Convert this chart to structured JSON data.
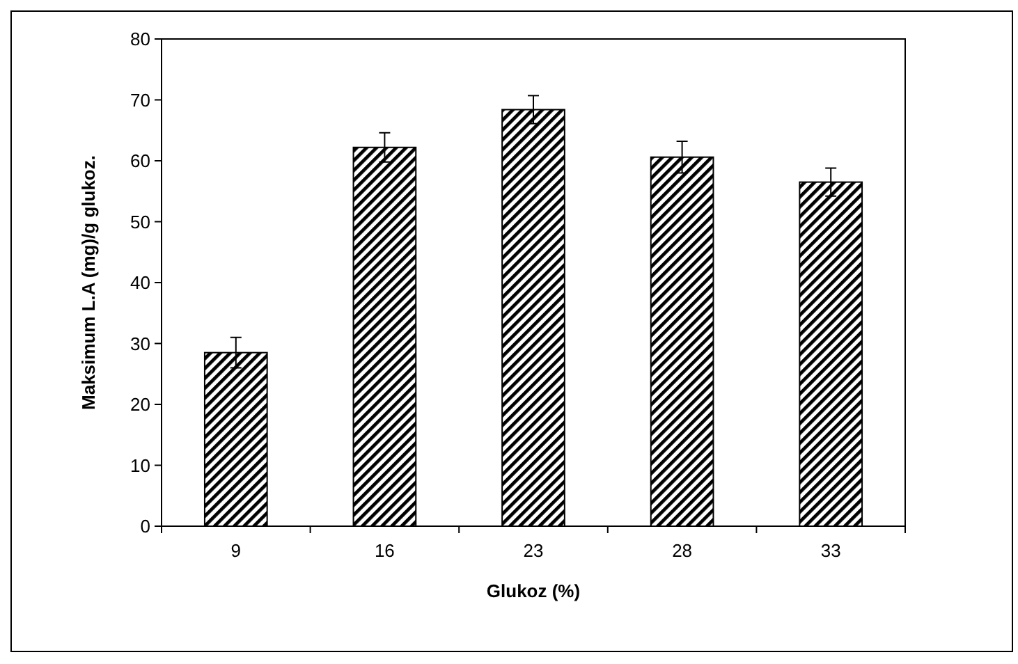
{
  "chart_data": {
    "type": "bar",
    "xlabel": "Glukoz (%)",
    "ylabel": "Maksimum L.A (mg)/g glukoz.",
    "categories": [
      "9",
      "16",
      "23",
      "28",
      "33"
    ],
    "values": [
      28.5,
      62.2,
      68.4,
      60.6,
      56.5
    ],
    "errors": [
      2.5,
      2.4,
      2.3,
      2.6,
      2.3
    ],
    "color": "#000000",
    "ylim": [
      0,
      80
    ],
    "yticks": [
      0,
      10,
      20,
      30,
      40,
      50,
      60,
      70,
      80
    ],
    "grid": false
  }
}
